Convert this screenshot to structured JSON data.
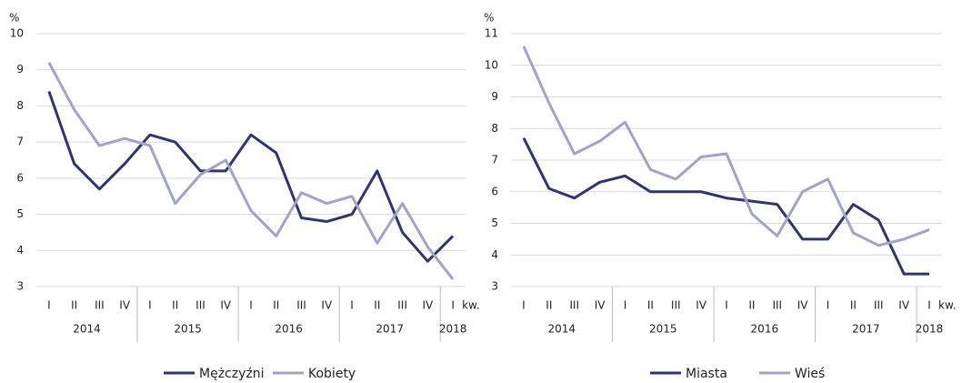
{
  "chart_data": [
    {
      "type": "line",
      "y_unit": "%",
      "x_unit": "kw.",
      "groups": [
        {
          "label": "2014",
          "categories": [
            "I",
            "II",
            "III",
            "IV"
          ]
        },
        {
          "label": "2015",
          "categories": [
            "I",
            "II",
            "III",
            "IV"
          ]
        },
        {
          "label": "2016",
          "categories": [
            "I",
            "II",
            "III",
            "IV"
          ]
        },
        {
          "label": "2017",
          "categories": [
            "I",
            "II",
            "III",
            "IV"
          ]
        },
        {
          "label": "2018",
          "categories": [
            "I"
          ]
        }
      ],
      "series": [
        {
          "name": "Mężczyźni",
          "color": "#2e3672",
          "values": [
            8.4,
            6.4,
            5.7,
            6.4,
            7.2,
            7.0,
            6.2,
            6.2,
            7.2,
            6.7,
            4.9,
            4.8,
            5.0,
            6.2,
            4.5,
            3.7,
            4.4
          ]
        },
        {
          "name": "Kobiety",
          "color": "#a3a3c8",
          "values": [
            9.2,
            7.9,
            6.9,
            7.1,
            6.9,
            5.3,
            6.1,
            6.5,
            5.1,
            4.4,
            5.6,
            5.3,
            5.5,
            4.2,
            5.3,
            4.1,
            3.2
          ]
        }
      ],
      "ylim": [
        3,
        10
      ],
      "yticks": [
        3,
        4,
        5,
        6,
        7,
        8,
        9,
        10
      ],
      "grid": true
    },
    {
      "type": "line",
      "y_unit": "%",
      "x_unit": "kw.",
      "groups": [
        {
          "label": "2014",
          "categories": [
            "I",
            "II",
            "III",
            "IV"
          ]
        },
        {
          "label": "2015",
          "categories": [
            "I",
            "II",
            "III",
            "IV"
          ]
        },
        {
          "label": "2016",
          "categories": [
            "I",
            "II",
            "III",
            "IV"
          ]
        },
        {
          "label": "2017",
          "categories": [
            "I",
            "II",
            "III",
            "IV"
          ]
        },
        {
          "label": "2018",
          "categories": [
            "I"
          ]
        }
      ],
      "series": [
        {
          "name": "Miasta",
          "color": "#2e3672",
          "values": [
            7.7,
            6.1,
            5.8,
            6.3,
            6.5,
            6.0,
            6.0,
            6.0,
            5.8,
            5.7,
            5.6,
            4.5,
            4.5,
            5.6,
            5.1,
            3.4,
            3.4
          ]
        },
        {
          "name": "Wieś",
          "color": "#a3a3c8",
          "values": [
            10.6,
            8.8,
            7.2,
            7.6,
            8.2,
            6.7,
            6.4,
            7.1,
            7.2,
            5.3,
            4.6,
            6.0,
            6.4,
            4.7,
            4.3,
            4.5,
            4.8
          ]
        }
      ],
      "ylim": [
        3,
        11
      ],
      "yticks": [
        3,
        4,
        5,
        6,
        7,
        8,
        9,
        10,
        11
      ],
      "grid": true
    }
  ]
}
